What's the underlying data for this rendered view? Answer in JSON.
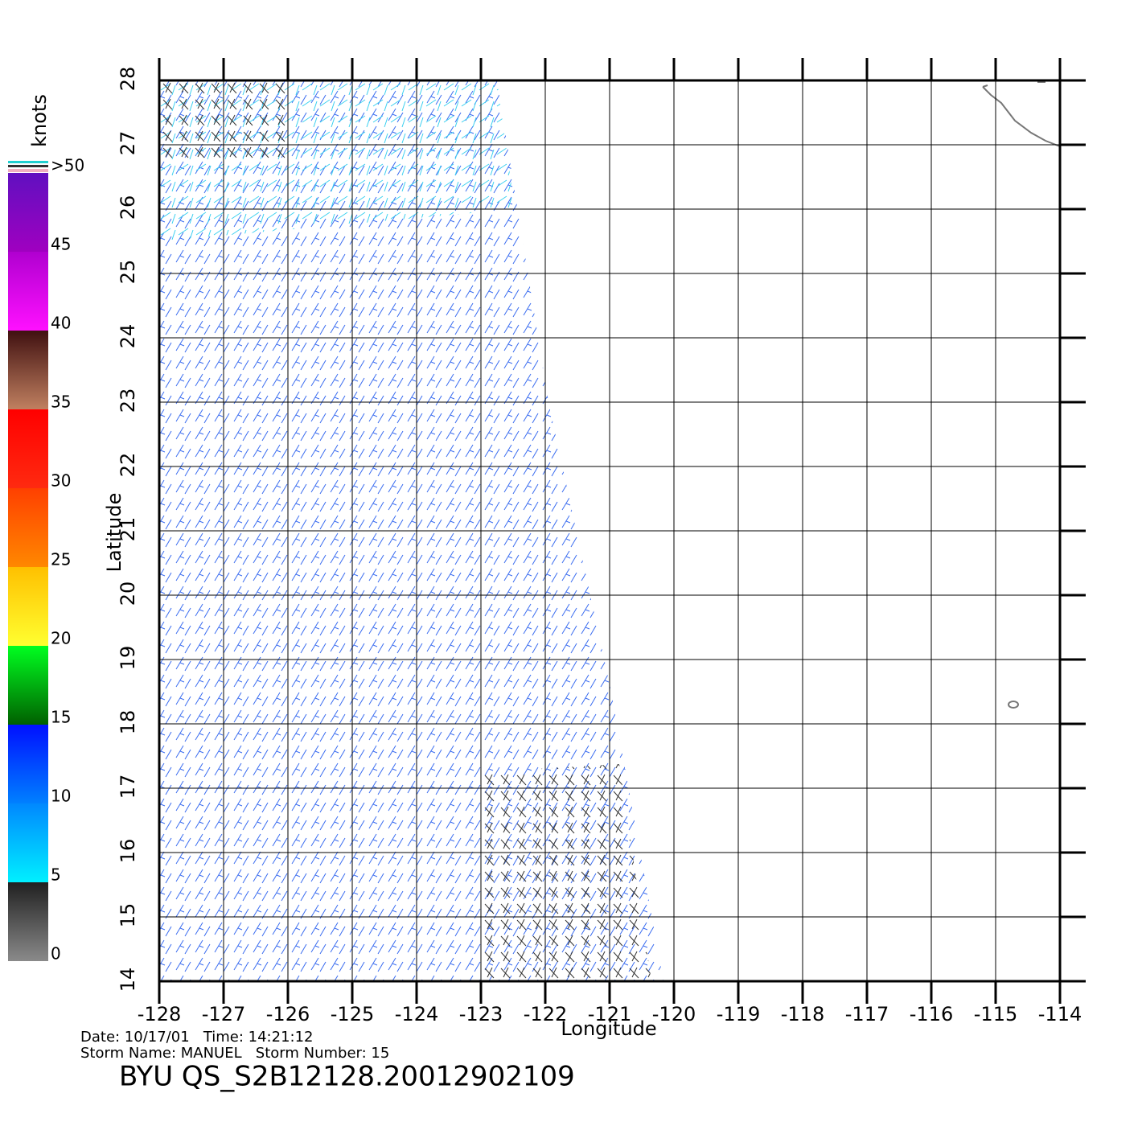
{
  "chart_data": {
    "type": "map",
    "xlabel": "Longitude",
    "ylabel": "Latitude",
    "xlim": [
      -128,
      -114
    ],
    "ylim": [
      14,
      28
    ],
    "xticks": [
      -128,
      -127,
      -126,
      -125,
      -124,
      -123,
      -122,
      -121,
      -120,
      -119,
      -118,
      -117,
      -116,
      -115,
      -114
    ],
    "yticks": [
      14,
      15,
      16,
      17,
      18,
      19,
      20,
      21,
      22,
      23,
      24,
      25,
      26,
      27,
      28
    ],
    "grid": true,
    "colorbar": {
      "label": "knots",
      "lim": [
        0,
        50
      ],
      "ticks": [
        0,
        5,
        10,
        15,
        20,
        25,
        30,
        35,
        40,
        45,
        {
          "value": 50,
          "label": ">50"
        }
      ],
      "bands": [
        {
          "from": 0,
          "to": 5,
          "colors": [
            "#8a8a8a",
            "#202020"
          ]
        },
        {
          "from": 5,
          "to": 10,
          "colors": [
            "#00f0ff",
            "#0088ff"
          ]
        },
        {
          "from": 10,
          "to": 15,
          "colors": [
            "#0080ff",
            "#0010ff"
          ]
        },
        {
          "from": 15,
          "to": 20,
          "colors": [
            "#006000",
            "#00ff20"
          ]
        },
        {
          "from": 20,
          "to": 25,
          "colors": [
            "#ffff30",
            "#ffc000"
          ]
        },
        {
          "from": 25,
          "to": 30,
          "colors": [
            "#ff8800",
            "#ff4000"
          ]
        },
        {
          "from": 30,
          "to": 35,
          "colors": [
            "#ff2a10",
            "#ff0000"
          ]
        },
        {
          "from": 35,
          "to": 40,
          "colors": [
            "#c08060",
            "#401010"
          ]
        },
        {
          "from": 40,
          "to": 45,
          "colors": [
            "#ff10ff",
            "#b000d0"
          ]
        },
        {
          "from": 45,
          "to": 50,
          "colors": [
            "#a000c0",
            "#6010c0"
          ]
        }
      ]
    },
    "info": [
      "Date: 10/17/01   Time: 14:21:12",
      "Storm Name: MANUEL   Storm Number: 15"
    ],
    "caption": "BYU QS_S2B12128.20012902109"
  }
}
